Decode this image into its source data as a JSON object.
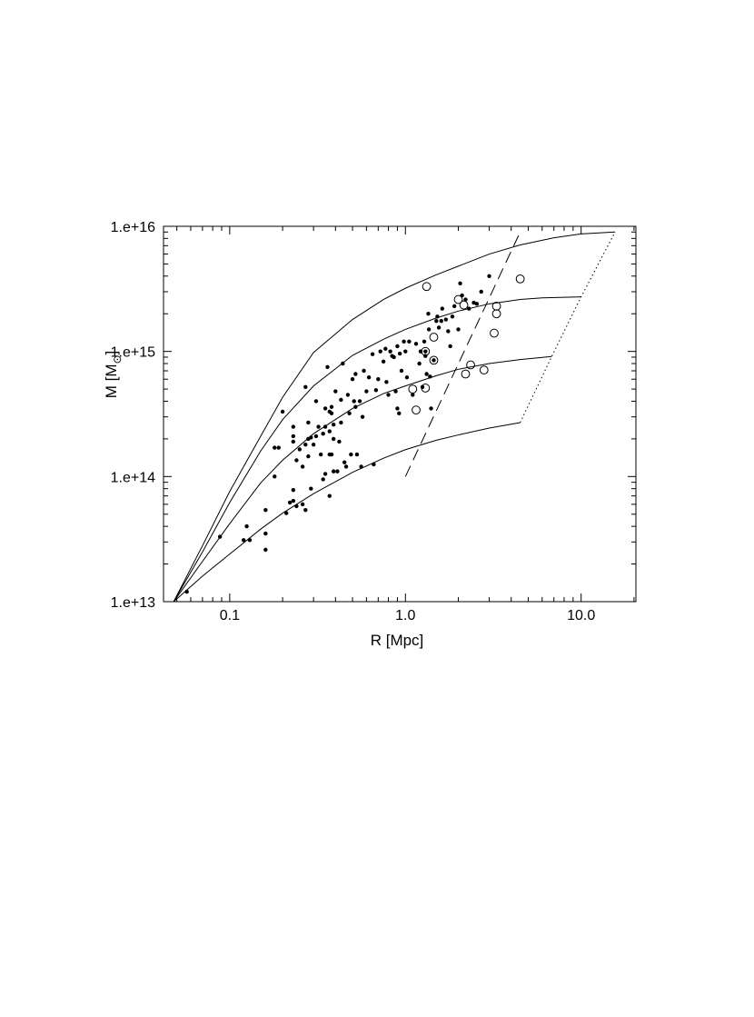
{
  "chart_data": {
    "type": "scatter",
    "xlabel": "R [Mpc]",
    "ylabel_main": "M [M",
    "ylabel_sun": "⊙",
    "ylabel_close": "]",
    "x_scale": "log",
    "y_scale": "log",
    "xlim": [
      0.042,
      20.5
    ],
    "ylim": [
      10000000000000.0,
      1e+16
    ],
    "x_tick_labels": [
      {
        "value": 0.1,
        "label": "0.1"
      },
      {
        "value": 1.0,
        "label": "1.0"
      },
      {
        "value": 10.0,
        "label": "10.0"
      }
    ],
    "y_tick_labels": [
      {
        "value": 10000000000000.0,
        "label": "1.e+13"
      },
      {
        "value": 100000000000000.0,
        "label": "1.e+14"
      },
      {
        "value": 1000000000000000.0,
        "label": "1.e+15"
      },
      {
        "value": 1e+16,
        "label": "1.e+16"
      }
    ],
    "grid": false,
    "curves": [
      {
        "style": "solid",
        "points": [
          [
            0.048,
            10000000000000.0
          ],
          [
            0.07,
            28000000000000.0
          ],
          [
            0.1,
            76000000000000.0
          ],
          [
            0.15,
            210000000000000.0
          ],
          [
            0.2,
            430000000000000.0
          ],
          [
            0.3,
            980000000000000.0
          ],
          [
            0.5,
            1800000000000000.0
          ],
          [
            0.75,
            2600000000000000.0
          ],
          [
            1.0,
            3200000000000000.0
          ],
          [
            1.5,
            4100000000000000.0
          ],
          [
            2.0,
            4800000000000000.0
          ],
          [
            3.0,
            6000000000000000.0
          ],
          [
            4.5,
            7100000000000000.0
          ],
          [
            7.0,
            8100000000000000.0
          ],
          [
            10.0,
            8700000000000000.0
          ],
          [
            15.6,
            9000000000000000.0
          ]
        ]
      },
      {
        "style": "solid",
        "points": [
          [
            0.048,
            10000000000000.0
          ],
          [
            0.07,
            25000000000000.0
          ],
          [
            0.1,
            62000000000000.0
          ],
          [
            0.15,
            160000000000000.0
          ],
          [
            0.2,
            285000000000000.0
          ],
          [
            0.3,
            530000000000000.0
          ],
          [
            0.5,
            930000000000000.0
          ],
          [
            0.75,
            1250000000000000.0
          ],
          [
            1.0,
            1500000000000000.0
          ],
          [
            1.5,
            1850000000000000.0
          ],
          [
            2.0,
            2100000000000000.0
          ],
          [
            3.0,
            2400000000000000.0
          ],
          [
            4.5,
            2600000000000000.0
          ],
          [
            6.0,
            2680000000000000.0
          ],
          [
            10.0,
            2730000000000000.0
          ]
        ]
      },
      {
        "style": "solid",
        "points": [
          [
            0.048,
            10000000000000.0
          ],
          [
            0.07,
            21000000000000.0
          ],
          [
            0.1,
            42000000000000.0
          ],
          [
            0.15,
            89000000000000.0
          ],
          [
            0.2,
            135000000000000.0
          ],
          [
            0.3,
            220000000000000.0
          ],
          [
            0.5,
            350000000000000.0
          ],
          [
            0.75,
            460000000000000.0
          ],
          [
            1.0,
            530000000000000.0
          ],
          [
            1.5,
            640000000000000.0
          ],
          [
            2.0,
            720000000000000.0
          ],
          [
            3.0,
            800000000000000.0
          ],
          [
            4.5,
            860000000000000.0
          ],
          [
            6.8,
            910000000000000.0
          ]
        ]
      },
      {
        "style": "solid",
        "points": [
          [
            0.048,
            10000000000000.0
          ],
          [
            0.07,
            16000000000000.0
          ],
          [
            0.1,
            24000000000000.0
          ],
          [
            0.15,
            38000000000000.0
          ],
          [
            0.2,
            51000000000000.0
          ],
          [
            0.3,
            73000000000000.0
          ],
          [
            0.5,
            108000000000000.0
          ],
          [
            0.75,
            140000000000000.0
          ],
          [
            1.0,
            164000000000000.0
          ],
          [
            1.5,
            195000000000000.0
          ],
          [
            2.0,
            215000000000000.0
          ],
          [
            3.0,
            244000000000000.0
          ],
          [
            4.5,
            270000000000000.0
          ]
        ]
      },
      {
        "style": "dashed",
        "points": [
          [
            1.0,
            100000000000000.0
          ],
          [
            4.5,
            9000000000000000.0
          ]
        ]
      },
      {
        "style": "dotted",
        "points": [
          [
            4.5,
            270000000000000.0
          ],
          [
            6.8,
            910000000000000.0
          ],
          [
            10.0,
            2730000000000000.0
          ],
          [
            15.6,
            9000000000000000.0
          ]
        ]
      }
    ],
    "series": [
      {
        "marker": "filled-circle",
        "points": [
          [
            0.057,
            12000000000000.0
          ],
          [
            0.088,
            33000000000000.0
          ],
          [
            0.12,
            31000000000000.0
          ],
          [
            0.125,
            40000000000000.0
          ],
          [
            0.13,
            31000000000000.0
          ],
          [
            0.16,
            26000000000000.0
          ],
          [
            0.16,
            35000000000000.0
          ],
          [
            0.16,
            54000000000000.0
          ],
          [
            0.18,
            100000000000000.0
          ],
          [
            0.18,
            170000000000000.0
          ],
          [
            0.19,
            170000000000000.0
          ],
          [
            0.2,
            330000000000000.0
          ],
          [
            0.21,
            51000000000000.0
          ],
          [
            0.22,
            62000000000000.0
          ],
          [
            0.23,
            64000000000000.0
          ],
          [
            0.23,
            78000000000000.0
          ],
          [
            0.23,
            190000000000000.0
          ],
          [
            0.23,
            210000000000000.0
          ],
          [
            0.23,
            250000000000000.0
          ],
          [
            0.24,
            58000000000000.0
          ],
          [
            0.24,
            135000000000000.0
          ],
          [
            0.25,
            165000000000000.0
          ],
          [
            0.26,
            60000000000000.0
          ],
          [
            0.26,
            120000000000000.0
          ],
          [
            0.27,
            54000000000000.0
          ],
          [
            0.27,
            180000000000000.0
          ],
          [
            0.27,
            520000000000000.0
          ],
          [
            0.28,
            145000000000000.0
          ],
          [
            0.28,
            200000000000000.0
          ],
          [
            0.28,
            270000000000000.0
          ],
          [
            0.29,
            80000000000000.0
          ],
          [
            0.29,
            205000000000000.0
          ],
          [
            0.3,
            180000000000000.0
          ],
          [
            0.31,
            210000000000000.0
          ],
          [
            0.31,
            400000000000000.0
          ],
          [
            0.32,
            250000000000000.0
          ],
          [
            0.33,
            150000000000000.0
          ],
          [
            0.34,
            95000000000000.0
          ],
          [
            0.34,
            220000000000000.0
          ],
          [
            0.35,
            105000000000000.0
          ],
          [
            0.35,
            250000000000000.0
          ],
          [
            0.35,
            350000000000000.0
          ],
          [
            0.36,
            750000000000000.0
          ],
          [
            0.37,
            70000000000000.0
          ],
          [
            0.37,
            150000000000000.0
          ],
          [
            0.37,
            230000000000000.0
          ],
          [
            0.37,
            330000000000000.0
          ],
          [
            0.38,
            150000000000000.0
          ],
          [
            0.38,
            320000000000000.0
          ],
          [
            0.38,
            360000000000000.0
          ],
          [
            0.39,
            110000000000000.0
          ],
          [
            0.39,
            200000000000000.0
          ],
          [
            0.39,
            260000000000000.0
          ],
          [
            0.4,
            480000000000000.0
          ],
          [
            0.41,
            110000000000000.0
          ],
          [
            0.42,
            190000000000000.0
          ],
          [
            0.43,
            270000000000000.0
          ],
          [
            0.43,
            410000000000000.0
          ],
          [
            0.44,
            800000000000000.0
          ],
          [
            0.45,
            130000000000000.0
          ],
          [
            0.46,
            120000000000000.0
          ],
          [
            0.47,
            450000000000000.0
          ],
          [
            0.48,
            320000000000000.0
          ],
          [
            0.49,
            150000000000000.0
          ],
          [
            0.5,
            600000000000000.0
          ],
          [
            0.51,
            400000000000000.0
          ],
          [
            0.52,
            360000000000000.0
          ],
          [
            0.52,
            660000000000000.0
          ],
          [
            0.53,
            150000000000000.0
          ],
          [
            0.55,
            400000000000000.0
          ],
          [
            0.56,
            120000000000000.0
          ],
          [
            0.57,
            300000000000000.0
          ],
          [
            0.58,
            700000000000000.0
          ],
          [
            0.6,
            480000000000000.0
          ],
          [
            0.62,
            620000000000000.0
          ],
          [
            0.65,
            950000000000000.0
          ],
          [
            0.66,
            125000000000000.0
          ],
          [
            0.68,
            490000000000000.0
          ],
          [
            0.7,
            600000000000000.0
          ],
          [
            0.72,
            1000000000000000.0
          ],
          [
            0.75,
            830000000000000.0
          ],
          [
            0.77,
            1050000000000000.0
          ],
          [
            0.78,
            570000000000000.0
          ],
          [
            0.8,
            450000000000000.0
          ],
          [
            0.82,
            1000000000000000.0
          ],
          [
            0.84,
            920000000000000.0
          ],
          [
            0.86,
            900000000000000.0
          ],
          [
            0.88,
            480000000000000.0
          ],
          [
            0.9,
            350000000000000.0
          ],
          [
            0.9,
            1100000000000000.0
          ],
          [
            0.92,
            320000000000000.0
          ],
          [
            0.93,
            960000000000000.0
          ],
          [
            0.95,
            700000000000000.0
          ],
          [
            0.98,
            1200000000000000.0
          ],
          [
            1.0,
            1000000000000000.0
          ],
          [
            1.02,
            620000000000000.0
          ],
          [
            1.05,
            1200000000000000.0
          ],
          [
            1.1,
            450000000000000.0
          ],
          [
            1.15,
            1150000000000000.0
          ],
          [
            1.2,
            800000000000000.0
          ],
          [
            1.22,
            1000000000000000.0
          ],
          [
            1.25,
            520000000000000.0
          ],
          [
            1.28,
            1200000000000000.0
          ],
          [
            1.3,
            920000000000000.0
          ],
          [
            1.32,
            660000000000000.0
          ],
          [
            1.35,
            2000000000000000.0
          ],
          [
            1.36,
            1500000000000000.0
          ],
          [
            1.38,
            630000000000000.0
          ],
          [
            1.4,
            350000000000000.0
          ],
          [
            1.45,
            850000000000000.0
          ],
          [
            1.5,
            1750000000000000.0
          ],
          [
            1.52,
            1900000000000000.0
          ],
          [
            1.55,
            1550000000000000.0
          ],
          [
            1.6,
            1750000000000000.0
          ],
          [
            1.62,
            2200000000000000.0
          ],
          [
            1.7,
            1800000000000000.0
          ],
          [
            1.75,
            1450000000000000.0
          ],
          [
            1.8,
            1100000000000000.0
          ],
          [
            1.85,
            1900000000000000.0
          ],
          [
            1.9,
            2300000000000000.0
          ],
          [
            2.0,
            1500000000000000.0
          ],
          [
            2.05,
            3500000000000000.0
          ],
          [
            2.1,
            2800000000000000.0
          ],
          [
            2.2,
            2600000000000000.0
          ],
          [
            2.3,
            2200000000000000.0
          ],
          [
            2.45,
            2450000000000000.0
          ],
          [
            2.55,
            2400000000000000.0
          ],
          [
            2.7,
            3000000000000000.0
          ],
          [
            3.0,
            4000000000000000.0
          ],
          [
            1.3,
            1000000000000000.0
          ]
        ]
      },
      {
        "marker": "open-circle",
        "points": [
          [
            1.32,
            3300000000000000.0
          ],
          [
            2.0,
            2600000000000000.0
          ],
          [
            2.15,
            2350000000000000.0
          ],
          [
            4.5,
            3800000000000000.0
          ],
          [
            3.3,
            2300000000000000.0
          ],
          [
            3.3,
            2000000000000000.0
          ],
          [
            3.2,
            1400000000000000.0
          ],
          [
            1.45,
            1300000000000000.0
          ],
          [
            1.3,
            1000000000000000.0
          ],
          [
            1.45,
            850000000000000.0
          ],
          [
            2.35,
            780000000000000.0
          ],
          [
            2.8,
            710000000000000.0
          ],
          [
            2.2,
            660000000000000.0
          ],
          [
            1.1,
            500000000000000.0
          ],
          [
            1.3,
            510000000000000.0
          ],
          [
            1.15,
            340000000000000.0
          ]
        ]
      }
    ]
  }
}
